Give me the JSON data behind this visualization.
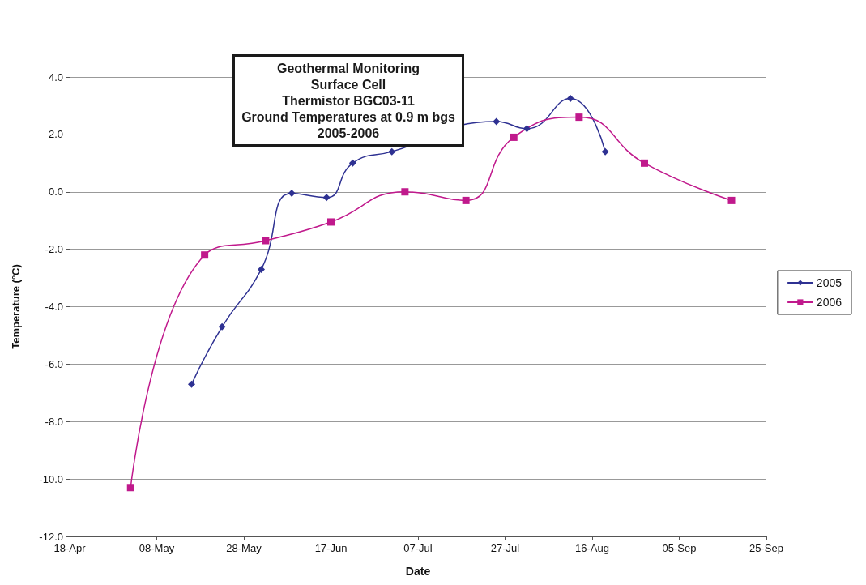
{
  "chart_data": {
    "type": "line",
    "title": "Geothermal Monitoring\nSurface Cell\nThermistor BGC03-11\nGround Temperatures at 0.9 m bgs\n2005-2006",
    "xlabel": "Date",
    "ylabel": "Temperature (°C)",
    "series": [
      {
        "name": "2005",
        "color": "#2e3192",
        "marker": "diamond",
        "x": [
          "--05-16",
          "--05-23",
          "--06-01",
          "--06-08",
          "--06-16",
          "--06-22",
          "--07-01",
          "--07-25",
          "--08-01",
          "--08-11",
          "--08-19"
        ],
        "values": [
          -6.7,
          -4.7,
          -2.7,
          -0.05,
          -0.2,
          1.0,
          1.4,
          2.45,
          2.2,
          3.25,
          1.4
        ]
      },
      {
        "name": "2006",
        "color": "#c0198c",
        "marker": "square",
        "x": [
          "--05-02",
          "--05-19",
          "--06-02",
          "--06-17",
          "--07-04",
          "--07-18",
          "--07-29",
          "--08-13",
          "--08-28",
          "--09-17"
        ],
        "values": [
          -10.3,
          -2.2,
          -1.7,
          -1.05,
          0.0,
          -0.3,
          1.9,
          2.6,
          1.0,
          -0.3
        ]
      }
    ],
    "xlim": [
      "--04-18",
      "--09-25"
    ],
    "xticks": [
      {
        "value": "--04-18",
        "label": "18-Apr"
      },
      {
        "value": "--05-08",
        "label": "08-May"
      },
      {
        "value": "--05-28",
        "label": "28-May"
      },
      {
        "value": "--06-17",
        "label": "17-Jun"
      },
      {
        "value": "--07-07",
        "label": "07-Jul"
      },
      {
        "value": "--07-27",
        "label": "27-Jul"
      },
      {
        "value": "--08-16",
        "label": "16-Aug"
      },
      {
        "value": "--09-05",
        "label": "05-Sep"
      },
      {
        "value": "--09-25",
        "label": "25-Sep"
      }
    ],
    "ylim": [
      -12,
      4
    ],
    "yticks": [
      {
        "value": -12,
        "label": "-12.0"
      },
      {
        "value": -10,
        "label": "-10.0"
      },
      {
        "value": -8,
        "label": "-8.0"
      },
      {
        "value": -6,
        "label": "-6.0"
      },
      {
        "value": -4,
        "label": "-4.0"
      },
      {
        "value": -2,
        "label": "-2.0"
      },
      {
        "value": 0,
        "label": "0.0"
      },
      {
        "value": 2,
        "label": "2.0"
      },
      {
        "value": 4,
        "label": "4.0"
      }
    ],
    "grid": "y",
    "legend": "right",
    "line_style": "solid"
  }
}
